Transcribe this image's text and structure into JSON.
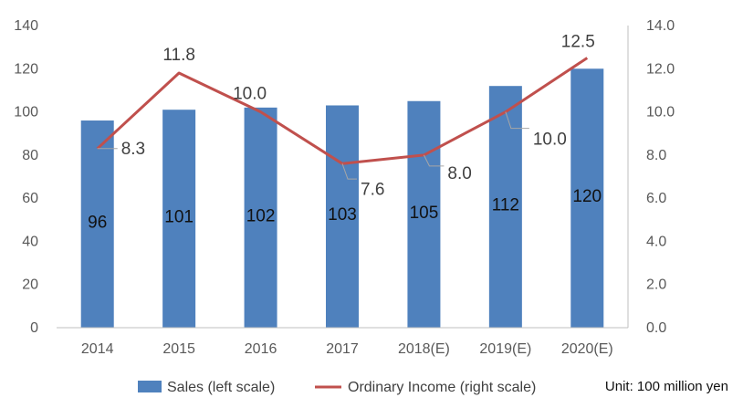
{
  "chart_data": {
    "type": "bar",
    "categories": [
      "2014",
      "2015",
      "2016",
      "2017",
      "2018(E)",
      "2019(E)",
      "2020(E)"
    ],
    "series": [
      {
        "name": "Sales (left scale)",
        "type": "bar",
        "axis": "left",
        "values": [
          96,
          101,
          102,
          103,
          105,
          112,
          120
        ],
        "color": "#4f81bd"
      },
      {
        "name": "Ordinary Income (right scale)",
        "type": "line",
        "axis": "right",
        "values": [
          8.3,
          11.8,
          10.0,
          7.6,
          8.0,
          10.0,
          12.5
        ],
        "color": "#c0504d"
      }
    ],
    "y_left": {
      "lim": [
        0,
        140
      ],
      "ticks": [
        "0",
        "20",
        "40",
        "60",
        "80",
        "100",
        "120",
        "140"
      ]
    },
    "y_right": {
      "lim": [
        0,
        14
      ],
      "ticks": [
        "0.0",
        "2.0",
        "4.0",
        "6.0",
        "8.0",
        "10.0",
        "12.0",
        "14.0"
      ]
    },
    "bar_labels": [
      "96",
      "101",
      "102",
      "103",
      "105",
      "112",
      "120"
    ],
    "line_labels": [
      "8.3",
      "11.8",
      "10.0",
      "7.6",
      "8.0",
      "10.0",
      "12.5"
    ],
    "legend": {
      "position": "bottom"
    },
    "grid": false
  },
  "unit_note": "Unit: 100 million yen"
}
